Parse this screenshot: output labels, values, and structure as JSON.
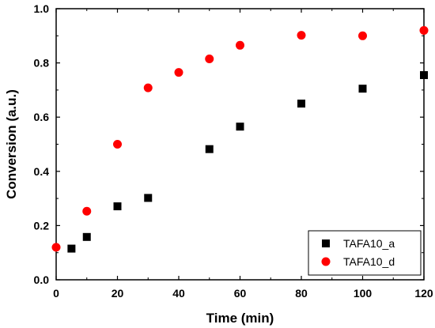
{
  "chart_data": {
    "type": "scatter",
    "title": "",
    "xlabel": "Time (min)",
    "ylabel": "Conversion (a.u.)",
    "xlim": [
      0,
      120
    ],
    "ylim": [
      0.0,
      1.0
    ],
    "xticks": [
      0,
      20,
      40,
      60,
      80,
      100,
      120
    ],
    "yticks": [
      0.0,
      0.2,
      0.4,
      0.6,
      0.8,
      1.0
    ],
    "xtick_labels": [
      "0",
      "20",
      "40",
      "60",
      "80",
      "100",
      "120"
    ],
    "ytick_labels": [
      "0.0",
      "0.2",
      "0.4",
      "0.6",
      "0.8",
      "1.0"
    ],
    "grid": false,
    "legend_position": "bottom-right",
    "series": [
      {
        "name": "TAFA10_a",
        "marker": "square",
        "color": "#000000",
        "x": [
          5,
          10,
          20,
          30,
          50,
          60,
          80,
          100,
          120
        ],
        "y": [
          0.115,
          0.158,
          0.271,
          0.302,
          0.482,
          0.565,
          0.65,
          0.705,
          0.755
        ]
      },
      {
        "name": "TAFA10_d",
        "marker": "circle",
        "color": "#ff0000",
        "x": [
          0,
          10,
          20,
          30,
          40,
          50,
          60,
          80,
          100,
          120
        ],
        "y": [
          0.12,
          0.253,
          0.5,
          0.708,
          0.765,
          0.815,
          0.865,
          0.902,
          0.9,
          0.92
        ]
      }
    ]
  }
}
